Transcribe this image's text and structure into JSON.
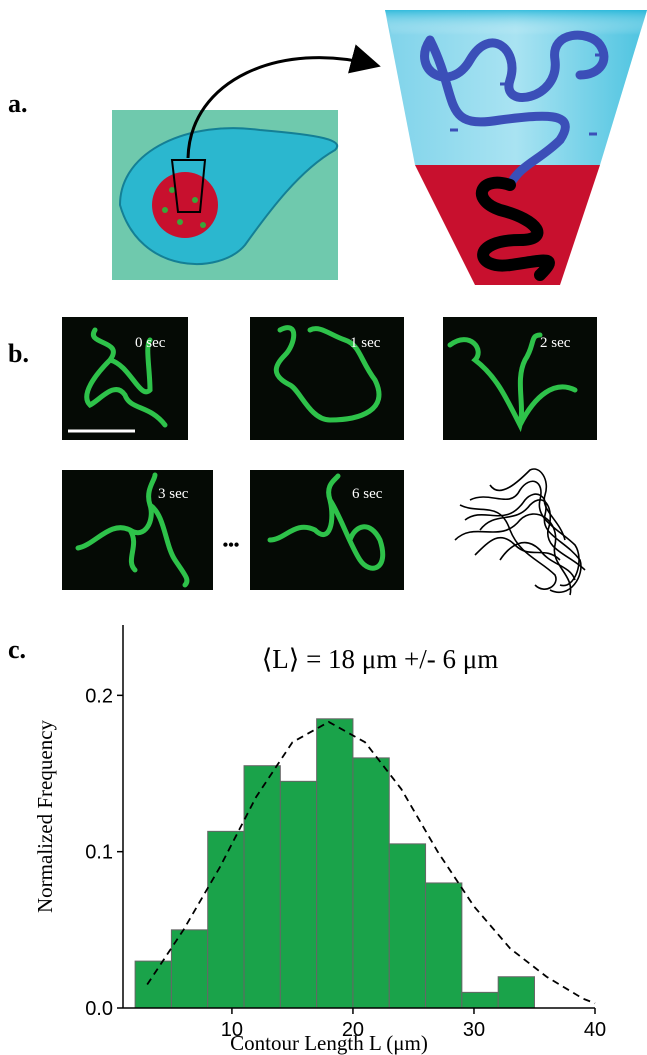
{
  "panels": {
    "a": {
      "label": "a."
    },
    "b": {
      "label": "b.",
      "frames": [
        "0 sec",
        "1 sec",
        "2 sec",
        "3 sec",
        "6 sec"
      ],
      "ellipsis": "•••"
    },
    "c": {
      "label": "c."
    }
  },
  "chart_data": {
    "type": "histogram",
    "annotation": "⟨L⟩ = 18 μm +/- 6 μm",
    "x_label": "Contour Length L (μm)",
    "y_label": "Normalized Frequency",
    "bins": [
      2,
      5,
      8,
      11,
      14,
      17,
      20,
      23,
      26,
      29,
      32,
      35
    ],
    "values": [
      0.03,
      0.05,
      0.113,
      0.155,
      0.145,
      0.185,
      0.16,
      0.105,
      0.08,
      0.01,
      0.02
    ],
    "color": "#1aa34a",
    "fit_curve": {
      "x": [
        3,
        6,
        9,
        12,
        15,
        18,
        21,
        24,
        27,
        30,
        33,
        36,
        39,
        40
      ],
      "values": [
        0.015,
        0.05,
        0.09,
        0.135,
        0.17,
        0.183,
        0.17,
        0.14,
        0.1,
        0.065,
        0.038,
        0.02,
        0.006,
        0.003
      ]
    },
    "xlim": [
      1,
      40
    ],
    "xticks": [
      10,
      20,
      30,
      40
    ],
    "ylim": [
      0,
      0.245
    ],
    "yticks": [
      {
        "value": 0,
        "label": "0.0"
      },
      0.1,
      0.2
    ]
  }
}
